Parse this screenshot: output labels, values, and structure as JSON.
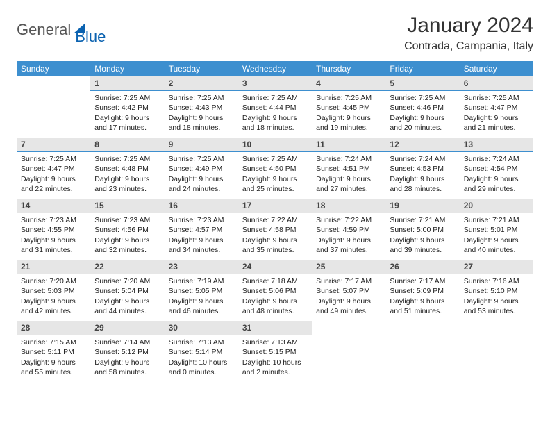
{
  "logo": {
    "general": "General",
    "blue": "Blue"
  },
  "title": "January 2024",
  "location": "Contrada, Campania, Italy",
  "day_headers": [
    "Sunday",
    "Monday",
    "Tuesday",
    "Wednesday",
    "Thursday",
    "Friday",
    "Saturday"
  ],
  "colors": {
    "header_bg": "#3d8fcf",
    "header_text": "#ffffff",
    "daynum_bg": "#e6e6e6",
    "daynum_border": "#3d8fcf",
    "logo_gray": "#555555",
    "logo_blue": "#0b62b0"
  },
  "weeks": [
    [
      {
        "n": "",
        "txt": ""
      },
      {
        "n": "1",
        "txt": "Sunrise: 7:25 AM\nSunset: 4:42 PM\nDaylight: 9 hours and 17 minutes."
      },
      {
        "n": "2",
        "txt": "Sunrise: 7:25 AM\nSunset: 4:43 PM\nDaylight: 9 hours and 18 minutes."
      },
      {
        "n": "3",
        "txt": "Sunrise: 7:25 AM\nSunset: 4:44 PM\nDaylight: 9 hours and 18 minutes."
      },
      {
        "n": "4",
        "txt": "Sunrise: 7:25 AM\nSunset: 4:45 PM\nDaylight: 9 hours and 19 minutes."
      },
      {
        "n": "5",
        "txt": "Sunrise: 7:25 AM\nSunset: 4:46 PM\nDaylight: 9 hours and 20 minutes."
      },
      {
        "n": "6",
        "txt": "Sunrise: 7:25 AM\nSunset: 4:47 PM\nDaylight: 9 hours and 21 minutes."
      }
    ],
    [
      {
        "n": "7",
        "txt": "Sunrise: 7:25 AM\nSunset: 4:47 PM\nDaylight: 9 hours and 22 minutes."
      },
      {
        "n": "8",
        "txt": "Sunrise: 7:25 AM\nSunset: 4:48 PM\nDaylight: 9 hours and 23 minutes."
      },
      {
        "n": "9",
        "txt": "Sunrise: 7:25 AM\nSunset: 4:49 PM\nDaylight: 9 hours and 24 minutes."
      },
      {
        "n": "10",
        "txt": "Sunrise: 7:25 AM\nSunset: 4:50 PM\nDaylight: 9 hours and 25 minutes."
      },
      {
        "n": "11",
        "txt": "Sunrise: 7:24 AM\nSunset: 4:51 PM\nDaylight: 9 hours and 27 minutes."
      },
      {
        "n": "12",
        "txt": "Sunrise: 7:24 AM\nSunset: 4:53 PM\nDaylight: 9 hours and 28 minutes."
      },
      {
        "n": "13",
        "txt": "Sunrise: 7:24 AM\nSunset: 4:54 PM\nDaylight: 9 hours and 29 minutes."
      }
    ],
    [
      {
        "n": "14",
        "txt": "Sunrise: 7:23 AM\nSunset: 4:55 PM\nDaylight: 9 hours and 31 minutes."
      },
      {
        "n": "15",
        "txt": "Sunrise: 7:23 AM\nSunset: 4:56 PM\nDaylight: 9 hours and 32 minutes."
      },
      {
        "n": "16",
        "txt": "Sunrise: 7:23 AM\nSunset: 4:57 PM\nDaylight: 9 hours and 34 minutes."
      },
      {
        "n": "17",
        "txt": "Sunrise: 7:22 AM\nSunset: 4:58 PM\nDaylight: 9 hours and 35 minutes."
      },
      {
        "n": "18",
        "txt": "Sunrise: 7:22 AM\nSunset: 4:59 PM\nDaylight: 9 hours and 37 minutes."
      },
      {
        "n": "19",
        "txt": "Sunrise: 7:21 AM\nSunset: 5:00 PM\nDaylight: 9 hours and 39 minutes."
      },
      {
        "n": "20",
        "txt": "Sunrise: 7:21 AM\nSunset: 5:01 PM\nDaylight: 9 hours and 40 minutes."
      }
    ],
    [
      {
        "n": "21",
        "txt": "Sunrise: 7:20 AM\nSunset: 5:03 PM\nDaylight: 9 hours and 42 minutes."
      },
      {
        "n": "22",
        "txt": "Sunrise: 7:20 AM\nSunset: 5:04 PM\nDaylight: 9 hours and 44 minutes."
      },
      {
        "n": "23",
        "txt": "Sunrise: 7:19 AM\nSunset: 5:05 PM\nDaylight: 9 hours and 46 minutes."
      },
      {
        "n": "24",
        "txt": "Sunrise: 7:18 AM\nSunset: 5:06 PM\nDaylight: 9 hours and 48 minutes."
      },
      {
        "n": "25",
        "txt": "Sunrise: 7:17 AM\nSunset: 5:07 PM\nDaylight: 9 hours and 49 minutes."
      },
      {
        "n": "26",
        "txt": "Sunrise: 7:17 AM\nSunset: 5:09 PM\nDaylight: 9 hours and 51 minutes."
      },
      {
        "n": "27",
        "txt": "Sunrise: 7:16 AM\nSunset: 5:10 PM\nDaylight: 9 hours and 53 minutes."
      }
    ],
    [
      {
        "n": "28",
        "txt": "Sunrise: 7:15 AM\nSunset: 5:11 PM\nDaylight: 9 hours and 55 minutes."
      },
      {
        "n": "29",
        "txt": "Sunrise: 7:14 AM\nSunset: 5:12 PM\nDaylight: 9 hours and 58 minutes."
      },
      {
        "n": "30",
        "txt": "Sunrise: 7:13 AM\nSunset: 5:14 PM\nDaylight: 10 hours and 0 minutes."
      },
      {
        "n": "31",
        "txt": "Sunrise: 7:13 AM\nSunset: 5:15 PM\nDaylight: 10 hours and 2 minutes."
      },
      {
        "n": "",
        "txt": ""
      },
      {
        "n": "",
        "txt": ""
      },
      {
        "n": "",
        "txt": ""
      }
    ]
  ]
}
